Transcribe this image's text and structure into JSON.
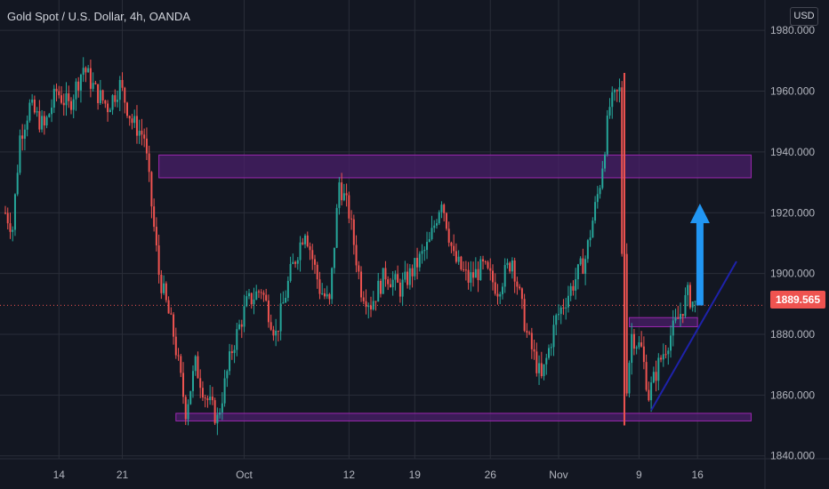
{
  "title": "Gold Spot / U.S. Dollar, 4h, OANDA",
  "currency_button": "USD",
  "colors": {
    "background": "#131722",
    "grid": "#2a2e39",
    "up": "#26a69a",
    "down": "#ef5350",
    "zone_fill": "#4a1f6a",
    "zone_stroke": "#9c27b0",
    "trendline": "#1e22aa",
    "arrow": "#2196f3",
    "price_line": "#ef5350"
  },
  "chart_data": {
    "type": "candlestick",
    "symbol": "Gold Spot / U.S. Dollar",
    "interval": "4h",
    "source": "OANDA",
    "current_price": "1889.565",
    "y_ticks": [
      "1980.000",
      "1960.000",
      "1940.000",
      "1920.000",
      "1900.000",
      "1880.000",
      "1860.000",
      "1840.000"
    ],
    "ylim": [
      1837,
      1990
    ],
    "x_ticks": [
      "14",
      "21",
      "Oct",
      "12",
      "19",
      "26",
      "Nov",
      "9",
      "16"
    ],
    "price_path": [
      [
        0,
        1920
      ],
      [
        3,
        1915
      ],
      [
        6,
        1945
      ],
      [
        10,
        1955
      ],
      [
        16,
        1948
      ],
      [
        21,
        1960
      ],
      [
        26,
        1955
      ],
      [
        32,
        1968
      ],
      [
        37,
        1960
      ],
      [
        42,
        1955
      ],
      [
        47,
        1962
      ],
      [
        52,
        1950
      ],
      [
        57,
        1945
      ],
      [
        63,
        1900
      ],
      [
        69,
        1880
      ],
      [
        74,
        1855
      ],
      [
        78,
        1870
      ],
      [
        82,
        1860
      ],
      [
        87,
        1852
      ],
      [
        93,
        1875
      ],
      [
        99,
        1890
      ],
      [
        105,
        1895
      ],
      [
        111,
        1880
      ],
      [
        117,
        1900
      ],
      [
        123,
        1915
      ],
      [
        129,
        1895
      ],
      [
        133,
        1890
      ],
      [
        137,
        1930
      ],
      [
        141,
        1920
      ],
      [
        146,
        1895
      ],
      [
        150,
        1890
      ],
      [
        156,
        1900
      ],
      [
        162,
        1895
      ],
      [
        168,
        1902
      ],
      [
        174,
        1910
      ],
      [
        179,
        1925
      ],
      [
        184,
        1905
      ],
      [
        190,
        1898
      ],
      [
        196,
        1902
      ],
      [
        202,
        1895
      ],
      [
        208,
        1905
      ],
      [
        214,
        1880
      ],
      [
        220,
        1865
      ],
      [
        226,
        1885
      ],
      [
        232,
        1895
      ],
      [
        238,
        1905
      ],
      [
        244,
        1930
      ],
      [
        248,
        1955
      ],
      [
        252,
        1960
      ],
      [
        254,
        1855
      ],
      [
        257,
        1880
      ],
      [
        261,
        1875
      ],
      [
        264,
        1860
      ],
      [
        268,
        1870
      ],
      [
        272,
        1878
      ],
      [
        276,
        1885
      ],
      [
        280,
        1893
      ],
      [
        283,
        1889.565
      ]
    ],
    "zones": [
      {
        "x0": 63,
        "x1": 306,
        "y0": 1931.5,
        "y1": 1939
      },
      {
        "x0": 70,
        "x1": 306,
        "y0": 1851.5,
        "y1": 1854
      },
      {
        "x0": 256,
        "x1": 284,
        "y0": 1882.5,
        "y1": 1885.5
      }
    ],
    "trendline": {
      "x0": 265,
      "y0": 1855,
      "x1": 300,
      "y1": 1904
    },
    "arrow": {
      "x": 285,
      "y_from": 1889.5,
      "y_to": 1923
    },
    "spike_line": {
      "x": 254,
      "y_top": 1966,
      "y_bottom": 1850
    }
  }
}
